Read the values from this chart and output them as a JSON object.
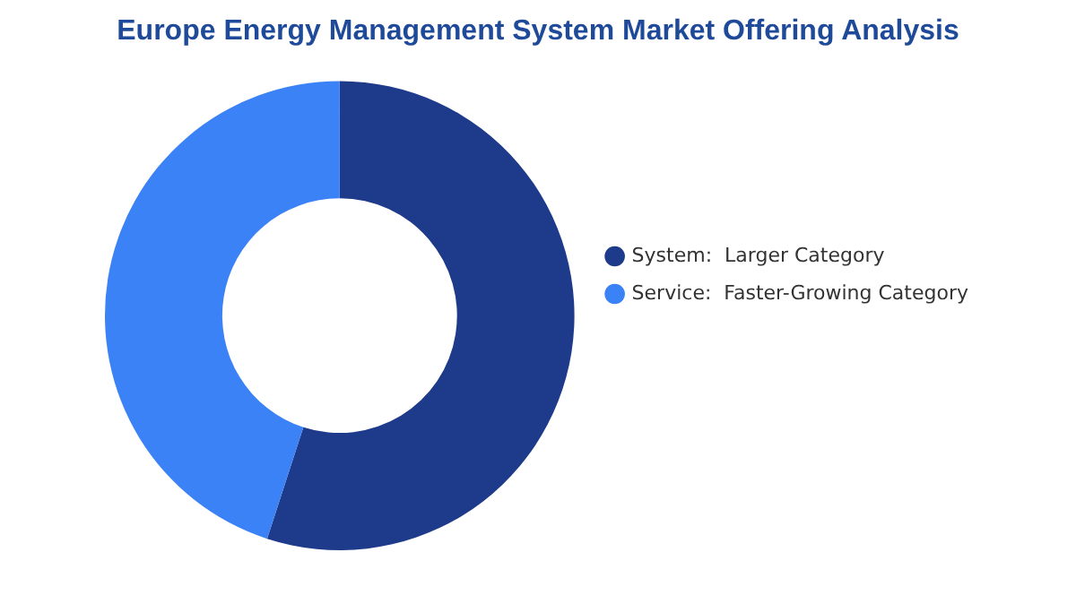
{
  "chart_data": {
    "type": "donut",
    "title": "Europe Energy Management System Market Offering Analysis",
    "categories": [
      "System:  Larger Category",
      "Service:  Faster-Growing Category"
    ],
    "values": [
      55,
      45
    ],
    "colors": [
      "#1e3a8a",
      "#3b82f6"
    ],
    "legend": "right"
  }
}
